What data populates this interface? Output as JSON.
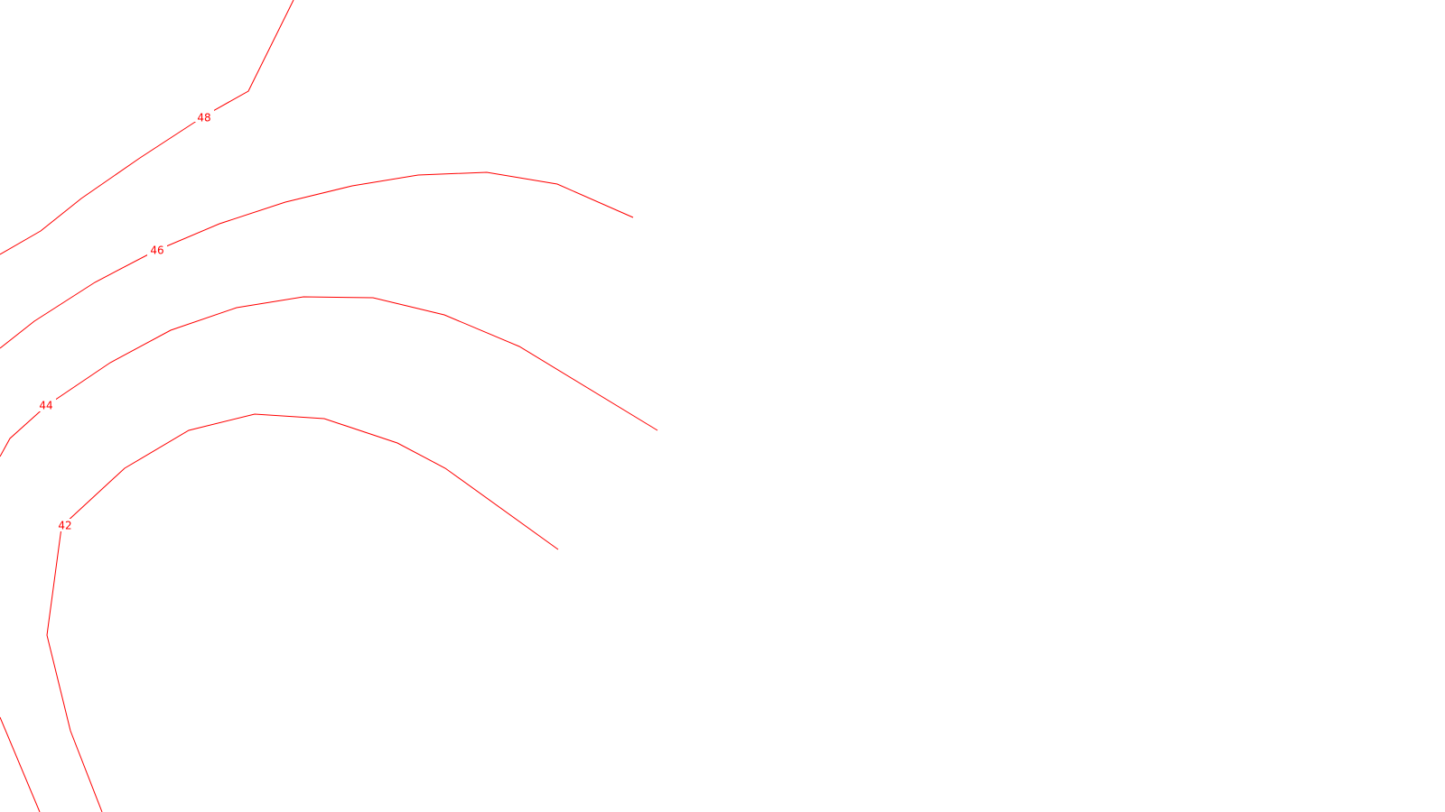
{
  "map": {
    "background_color": "#ffffff",
    "contour_color": "#ff0000",
    "contours": [
      {
        "id": "48",
        "label": "48"
      },
      {
        "id": "46",
        "label": "46"
      },
      {
        "id": "44",
        "label": "44"
      },
      {
        "id": "42",
        "label": "42"
      }
    ]
  }
}
